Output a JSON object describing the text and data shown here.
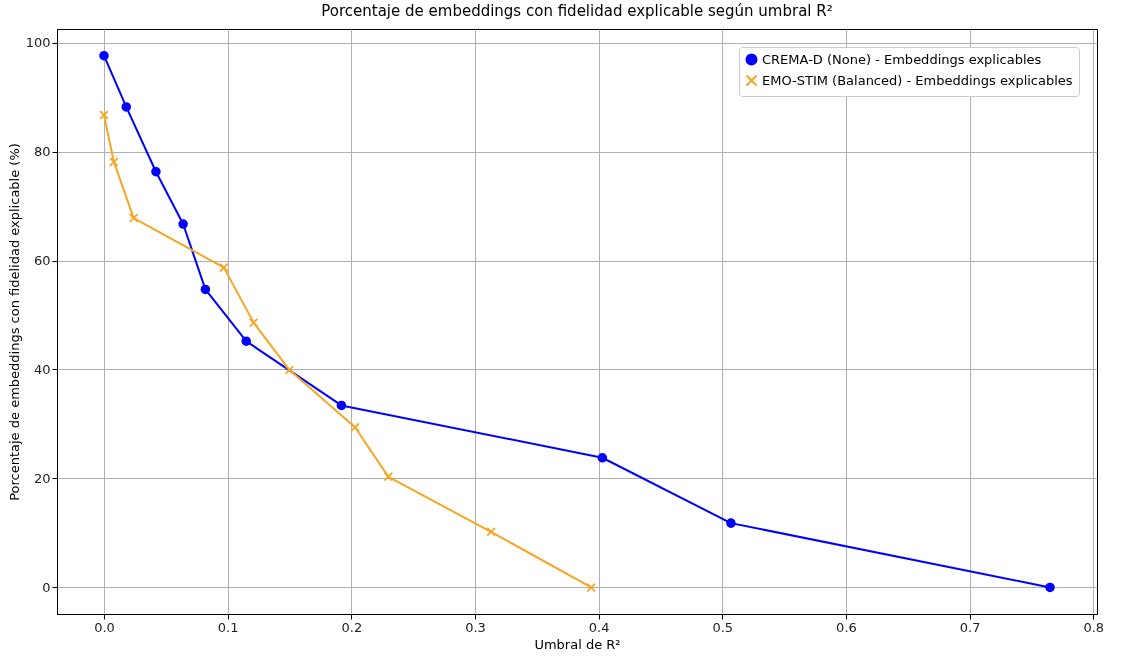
{
  "chart_data": {
    "type": "line",
    "title": "Porcentaje de embeddings con fidelidad explicable según umbral R²",
    "xlabel": "Umbral de R²",
    "ylabel": "Porcentaje de embeddings con fidelidad explicable (%)",
    "series": [
      {
        "name": "CREMA-D (None) - Embeddings explicables",
        "color": "#0000ff",
        "marker": "circle",
        "x": [
          0.0,
          0.018,
          0.042,
          0.064,
          0.082,
          0.115,
          0.192,
          0.403,
          0.507,
          0.765
        ],
        "values": [
          97.6,
          88.2,
          76.3,
          66.7,
          54.7,
          45.2,
          33.4,
          23.8,
          11.8,
          0
        ]
      },
      {
        "name": "EMO-STIM (Balanced) - Embeddings explicables",
        "color": "#f5a623",
        "marker": "cross",
        "x": [
          0.0,
          0.008,
          0.024,
          0.097,
          0.121,
          0.15,
          0.203,
          0.23,
          0.313,
          0.394
        ],
        "values": [
          86.7,
          78.1,
          67.8,
          58.7,
          48.6,
          39.9,
          29.4,
          20.3,
          10.2,
          0
        ]
      }
    ],
    "xlim": [
      -0.038,
      0.803
    ],
    "ylim": [
      -4.88,
      102.5
    ],
    "xticks": [
      {
        "value": 0,
        "label": "0.0"
      },
      0.1,
      0.2,
      0.3,
      0.4,
      0.5,
      0.6,
      0.7,
      0.8
    ],
    "yticks": [
      0,
      20,
      40,
      60,
      80,
      100
    ],
    "grid": true,
    "legend": "top right"
  }
}
